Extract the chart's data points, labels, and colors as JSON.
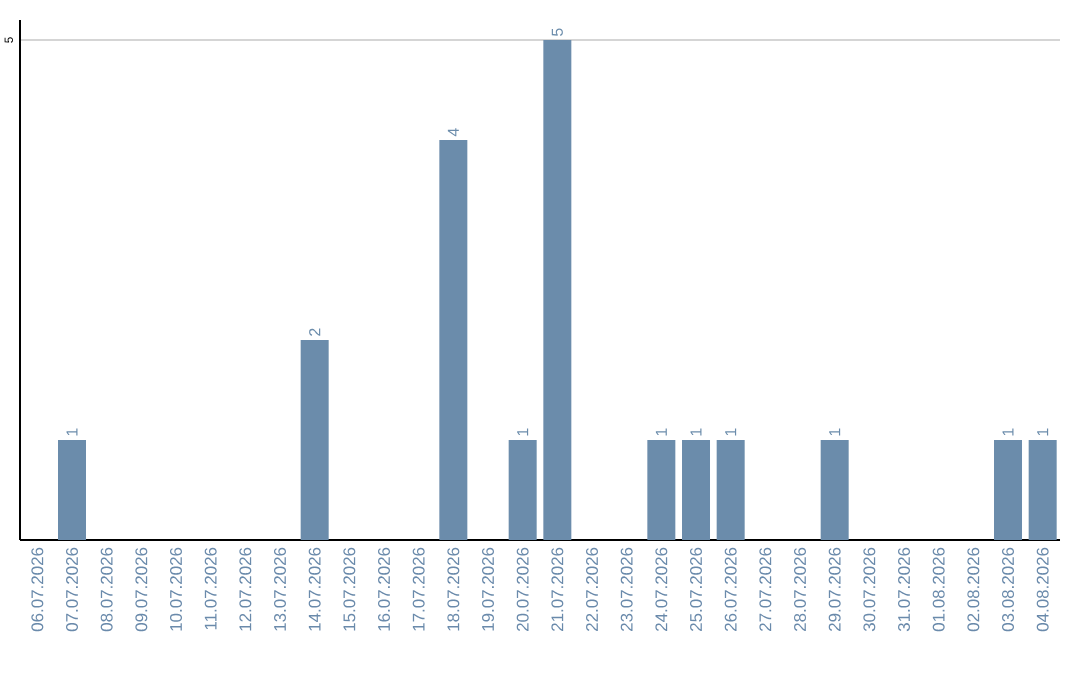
{
  "chart_data": {
    "type": "bar",
    "categories": [
      "06.07.2026",
      "07.07.2026",
      "08.07.2026",
      "09.07.2026",
      "10.07.2026",
      "11.07.2026",
      "12.07.2026",
      "13.07.2026",
      "14.07.2026",
      "15.07.2026",
      "16.07.2026",
      "17.07.2026",
      "18.07.2026",
      "19.07.2026",
      "20.07.2026",
      "21.07.2026",
      "22.07.2026",
      "23.07.2026",
      "24.07.2026",
      "25.07.2026",
      "26.07.2026",
      "27.07.2026",
      "28.07.2026",
      "29.07.2026",
      "30.07.2026",
      "31.07.2026",
      "01.08.2026",
      "02.08.2026",
      "03.08.2026",
      "04.08.2026"
    ],
    "values": [
      0,
      1,
      0,
      0,
      0,
      0,
      0,
      0,
      2,
      0,
      0,
      0,
      4,
      0,
      1,
      5,
      0,
      0,
      1,
      1,
      1,
      0,
      0,
      1,
      0,
      0,
      0,
      0,
      1,
      1
    ],
    "value_labels": [
      null,
      "1",
      null,
      null,
      null,
      null,
      null,
      null,
      "2",
      null,
      null,
      null,
      "4",
      null,
      "1",
      "5",
      null,
      null,
      "1",
      "1",
      "1",
      null,
      null,
      "1",
      null,
      null,
      null,
      null,
      "1",
      "1"
    ],
    "color": "#6b8cab",
    "ylim": [
      0,
      5.2
    ],
    "yticks": [
      5
    ],
    "grid": "y"
  }
}
